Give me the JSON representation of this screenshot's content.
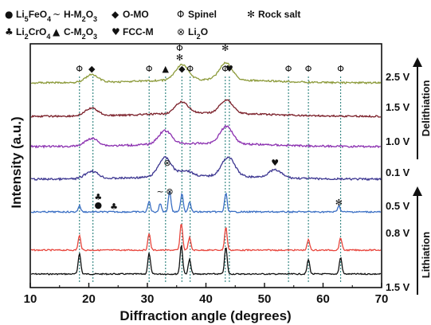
{
  "chart_data": {
    "type": "line",
    "xlabel": "Diffraction angle (degrees)",
    "ylabel": "Intensity (a.u.)",
    "xlim": [
      10,
      70
    ],
    "xticks": [
      10,
      20,
      30,
      40,
      50,
      60,
      70
    ],
    "grid": false,
    "legend": [
      {
        "symbol": "●",
        "label": "Li5FeO4"
      },
      {
        "symbol": "~",
        "label": "H-M2O3"
      },
      {
        "symbol": "◆",
        "label": "O-MO"
      },
      {
        "symbol": "Φ",
        "label": "Spinel"
      },
      {
        "symbol": "✻",
        "label": "Rock salt"
      },
      {
        "symbol": "♣",
        "label": "Li2CrO4"
      },
      {
        "symbol": "▲",
        "label": "C-M2O3"
      },
      {
        "symbol": "♥",
        "label": "FCC-M"
      },
      {
        "symbol": "⊗",
        "label": "Li2O"
      }
    ],
    "reference_lines_x": [
      18.4,
      20.7,
      30.3,
      33.1,
      35.9,
      37.3,
      43.3,
      44.0,
      54.1,
      57.5,
      63.0
    ],
    "series": [
      {
        "name": "1.5 V",
        "color": "#111111",
        "peaks": [
          [
            18.4,
            1.0
          ],
          [
            30.3,
            1.0
          ],
          [
            35.8,
            1.4
          ],
          [
            37.2,
            0.7
          ],
          [
            43.4,
            1.3
          ],
          [
            57.5,
            0.7
          ],
          [
            63.0,
            0.8
          ]
        ]
      },
      {
        "name": "0.8 V",
        "color": "#e8453c",
        "peaks": [
          [
            18.4,
            0.7
          ],
          [
            30.3,
            0.8
          ],
          [
            35.8,
            1.3
          ],
          [
            37.2,
            0.6
          ],
          [
            43.4,
            1.1
          ],
          [
            57.5,
            0.5
          ],
          [
            63.0,
            0.6
          ]
        ]
      },
      {
        "name": "0.5 V",
        "color": "#3a6fc4",
        "peaks": [
          [
            18.4,
            0.3
          ],
          [
            30.3,
            0.5
          ],
          [
            32.2,
            0.4
          ],
          [
            33.8,
            1.0
          ],
          [
            35.9,
            0.9
          ],
          [
            37.2,
            0.5
          ],
          [
            43.4,
            0.9
          ],
          [
            62.7,
            0.3
          ]
        ]
      },
      {
        "name": "0.1 V",
        "color": "#3b3590",
        "peaks": [
          [
            20.5,
            0.4
          ],
          [
            33.0,
            1.0
          ],
          [
            36.5,
            0.3
          ],
          [
            43.8,
            1.0
          ],
          [
            51.8,
            0.4
          ]
        ]
      },
      {
        "name": "1.0 V",
        "color": "#8b30b0",
        "peaks": [
          [
            20.5,
            0.4
          ],
          [
            33.0,
            0.7
          ],
          [
            43.5,
            0.9
          ]
        ]
      },
      {
        "name": "1.5 V",
        "color": "#7a1e28",
        "peaks": [
          [
            20.5,
            0.4
          ],
          [
            35.9,
            0.6
          ],
          [
            43.5,
            0.7
          ]
        ]
      },
      {
        "name": "2.5 V",
        "color": "#8c9a3a",
        "peaks": [
          [
            20.5,
            0.4
          ],
          [
            35.9,
            0.8
          ],
          [
            43.4,
            0.9
          ]
        ]
      }
    ],
    "peak_markers": [
      {
        "x": 18.4,
        "symbol": "Φ"
      },
      {
        "x": 20.5,
        "symbol": "◆"
      },
      {
        "x": 30.3,
        "symbol": "Φ"
      },
      {
        "x": 33.1,
        "symbol": "▲"
      },
      {
        "x": 35.9,
        "symbol": "◆"
      },
      {
        "x": 37.3,
        "symbol": "Φ"
      },
      {
        "x": 43.3,
        "symbol": "Φ"
      },
      {
        "x": 44.0,
        "symbol": "♥"
      },
      {
        "x": 54.1,
        "symbol": "Φ"
      },
      {
        "x": 57.5,
        "symbol": "Φ"
      },
      {
        "x": 63.0,
        "symbol": "Φ"
      }
    ],
    "annotations": [
      {
        "text": "Φ",
        "x": 35.5
      },
      {
        "text": "✻",
        "x": 35.5
      },
      {
        "text": "✻",
        "x": 43.3
      },
      {
        "text": "⊗",
        "x": 33.4
      },
      {
        "text": "⊗",
        "x": 33.8
      },
      {
        "text": "♥",
        "x": 51.8
      },
      {
        "text": "♣",
        "x": 21.6
      },
      {
        "text": "●",
        "x": 21.6
      },
      {
        "text": "♣",
        "x": 24.3
      },
      {
        "text": "~",
        "x": 32.2
      },
      {
        "text": "✻",
        "x": 62.7
      }
    ],
    "side_labels": {
      "top": "Delithiation",
      "bottom": "Lithiation"
    }
  }
}
